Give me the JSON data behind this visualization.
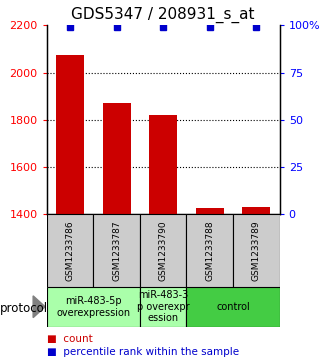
{
  "title": "GDS5347 / 208931_s_at",
  "samples": [
    "GSM1233786",
    "GSM1233787",
    "GSM1233790",
    "GSM1233788",
    "GSM1233789"
  ],
  "counts": [
    2075,
    1870,
    1820,
    1425,
    1430
  ],
  "percentiles": [
    99,
    99,
    99,
    99,
    99
  ],
  "ylim_left": [
    1400,
    2200
  ],
  "ylim_right": [
    0,
    100
  ],
  "yticks_left": [
    1400,
    1600,
    1800,
    2000,
    2200
  ],
  "yticks_right": [
    0,
    25,
    50,
    75,
    100
  ],
  "ytick_labels_right": [
    "0",
    "25",
    "50",
    "75",
    "100%"
  ],
  "bar_color": "#cc0000",
  "dot_color": "#0000cc",
  "bg_color": "#ffffff",
  "sample_box_color": "#cccccc",
  "legend_count_color": "#cc0000",
  "legend_percentile_color": "#0000cc",
  "group_spans": [
    [
      0,
      1,
      "miR-483-5p\noverexpression",
      "#aaffaa"
    ],
    [
      2,
      2,
      "miR-483-3\np overexpr\nession",
      "#aaffaa"
    ],
    [
      3,
      4,
      "control",
      "#44cc44"
    ]
  ],
  "title_fontsize": 11,
  "tick_fontsize": 8,
  "sample_fontsize": 6.5,
  "proto_fontsize": 7,
  "legend_fontsize": 7.5
}
